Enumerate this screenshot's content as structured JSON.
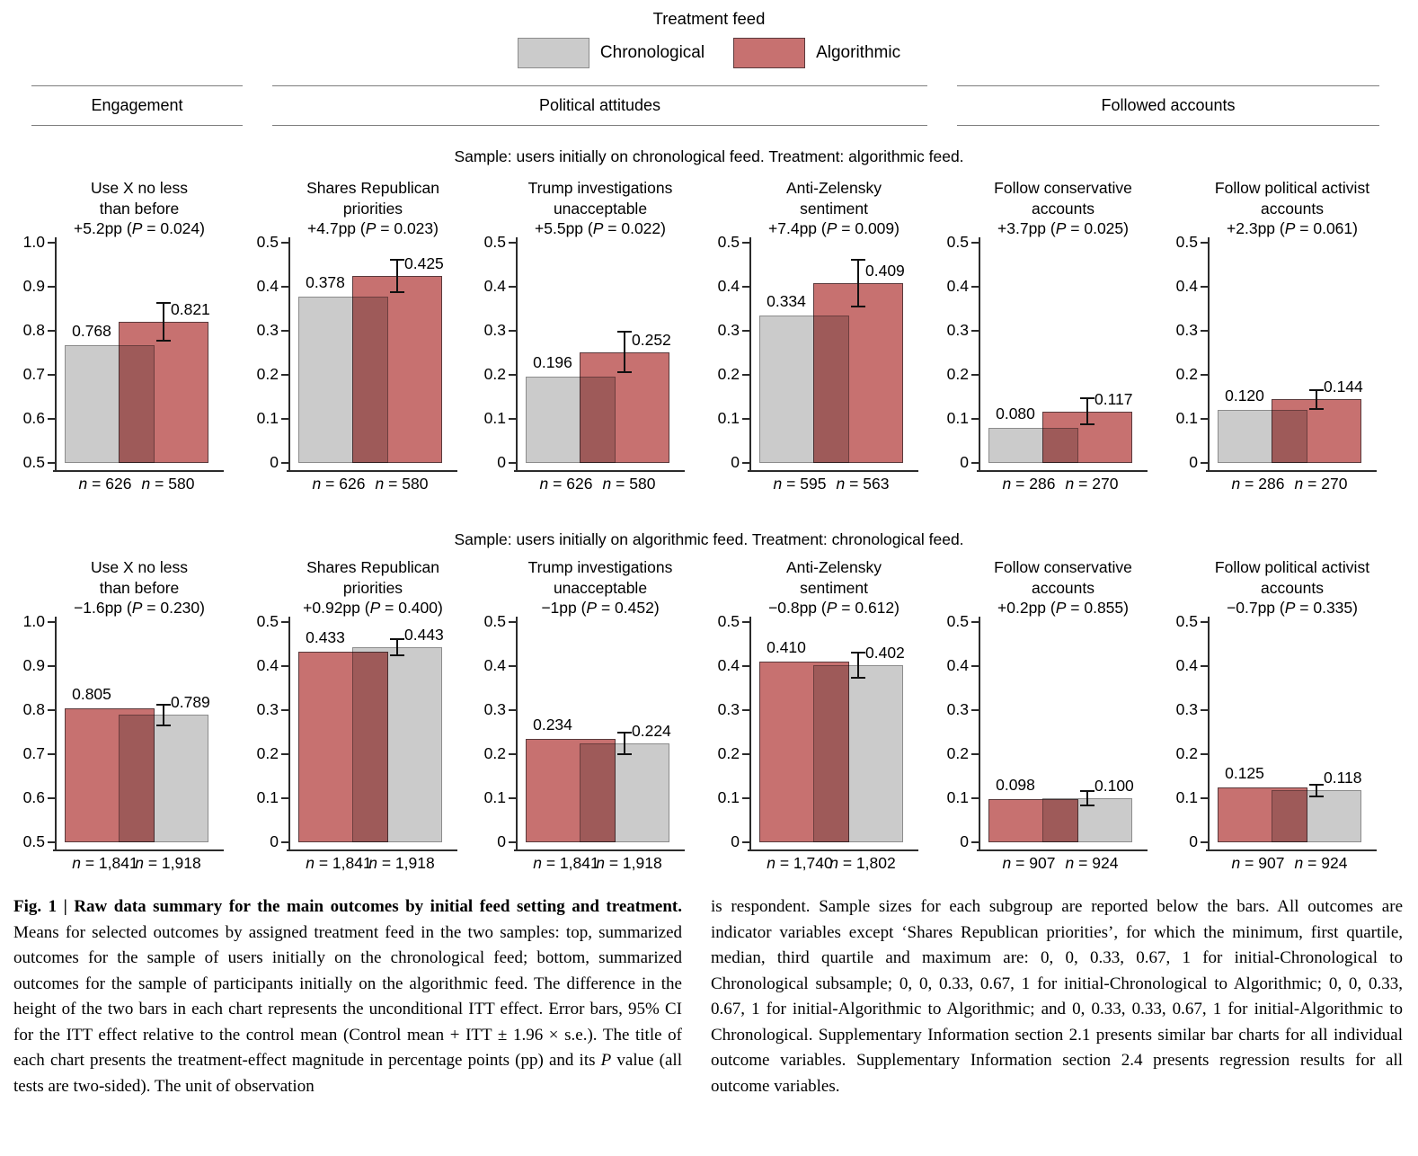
{
  "legend": {
    "title": "Treatment feed",
    "items": [
      {
        "label": "Chronological",
        "color": "#cbcbcb",
        "border": "#8c8c8c"
      },
      {
        "label": "Algorithmic",
        "color": "#c77170",
        "border": "#5a3a3c"
      }
    ]
  },
  "group_headers": [
    {
      "label": "Engagement"
    },
    {
      "label": "Political attitudes"
    },
    {
      "label": "Followed accounts"
    }
  ],
  "chart_data": {
    "type": "bar",
    "grid": false,
    "error_bars": "95% CI on treatment bar",
    "rows": [
      {
        "sample_label": "Sample: users initially on chronological feed. Treatment: algorithmic feed.",
        "charts": [
          {
            "title_lines": [
              "Use X no less",
              "than before"
            ],
            "effect": "+5.2pp",
            "p_value": "0.024",
            "ylim": [
              0.5,
              1.0
            ],
            "bars": [
              {
                "group": "Chronological",
                "value": 0.768,
                "label": "0.768",
                "n_label": "n = 626"
              },
              {
                "group": "Algorithmic",
                "value": 0.821,
                "label": "0.821",
                "n_label": "n = 580",
                "ci": [
                  0.776,
                  0.866
                ]
              }
            ]
          },
          {
            "title_lines": [
              "Shares Republican",
              "priorities"
            ],
            "effect": "+4.7pp",
            "p_value": "0.023",
            "ylim": [
              0,
              0.5
            ],
            "bars": [
              {
                "group": "Chronological",
                "value": 0.378,
                "label": "0.378",
                "n_label": "n = 626"
              },
              {
                "group": "Algorithmic",
                "value": 0.425,
                "label": "0.425",
                "n_label": "n = 580",
                "ci": [
                  0.386,
                  0.464
                ]
              }
            ]
          },
          {
            "title_lines": [
              "Trump investigations",
              "unacceptable"
            ],
            "effect": "+5.5pp",
            "p_value": "0.022",
            "ylim": [
              0,
              0.5
            ],
            "bars": [
              {
                "group": "Chronological",
                "value": 0.196,
                "label": "0.196",
                "n_label": "n = 626"
              },
              {
                "group": "Algorithmic",
                "value": 0.252,
                "label": "0.252",
                "n_label": "n = 580",
                "ci": [
                  0.205,
                  0.299
                ]
              }
            ]
          },
          {
            "title_lines": [
              "Anti-Zelensky",
              "sentiment"
            ],
            "effect": "+7.4pp",
            "p_value": "0.009",
            "ylim": [
              0,
              0.5
            ],
            "bars": [
              {
                "group": "Chronological",
                "value": 0.334,
                "label": "0.334",
                "n_label": "n = 595"
              },
              {
                "group": "Algorithmic",
                "value": 0.409,
                "label": "0.409",
                "n_label": "n = 563",
                "ci": [
                  0.354,
                  0.464
                ]
              }
            ]
          },
          {
            "title_lines": [
              "Follow conservative",
              "accounts"
            ],
            "effect": "+3.7pp",
            "p_value": "0.025",
            "ylim": [
              0,
              0.5
            ],
            "bars": [
              {
                "group": "Chronological",
                "value": 0.08,
                "label": "0.080",
                "n_label": "n = 286"
              },
              {
                "group": "Algorithmic",
                "value": 0.117,
                "label": "0.117",
                "n_label": "n = 270",
                "ci": [
                  0.085,
                  0.149
                ]
              }
            ]
          },
          {
            "title_lines": [
              "Follow political activist",
              "accounts"
            ],
            "effect": "+2.3pp",
            "p_value": "0.061",
            "ylim": [
              0,
              0.5
            ],
            "bars": [
              {
                "group": "Chronological",
                "value": 0.12,
                "label": "0.120",
                "n_label": "n = 286"
              },
              {
                "group": "Algorithmic",
                "value": 0.144,
                "label": "0.144",
                "n_label": "n = 270",
                "ci": [
                  0.121,
                  0.167
                ]
              }
            ]
          }
        ]
      },
      {
        "sample_label": "Sample: users initially on algorithmic feed. Treatment: chronological feed.",
        "charts": [
          {
            "title_lines": [
              "Use X no less",
              "than before"
            ],
            "effect": "−1.6pp",
            "p_value": "0.230",
            "ylim": [
              0.5,
              1.0
            ],
            "bars": [
              {
                "group": "Algorithmic",
                "value": 0.805,
                "label": "0.805",
                "n_label": "n = 1,841"
              },
              {
                "group": "Chronological",
                "value": 0.789,
                "label": "0.789",
                "n_label": "n = 1,918",
                "ci": [
                  0.763,
                  0.815
                ]
              }
            ]
          },
          {
            "title_lines": [
              "Shares Republican",
              "priorities"
            ],
            "effect": "+0.92pp",
            "p_value": "0.400",
            "ylim": [
              0,
              0.5
            ],
            "bars": [
              {
                "group": "Algorithmic",
                "value": 0.433,
                "label": "0.433",
                "n_label": "n = 1,841"
              },
              {
                "group": "Chronological",
                "value": 0.443,
                "label": "0.443",
                "n_label": "n = 1,918",
                "ci": [
                  0.423,
                  0.463
                ]
              }
            ]
          },
          {
            "title_lines": [
              "Trump investigations",
              "unacceptable"
            ],
            "effect": "−1pp",
            "p_value": "0.452",
            "ylim": [
              0,
              0.5
            ],
            "bars": [
              {
                "group": "Algorithmic",
                "value": 0.234,
                "label": "0.234",
                "n_label": "n = 1,841"
              },
              {
                "group": "Chronological",
                "value": 0.224,
                "label": "0.224",
                "n_label": "n = 1,918",
                "ci": [
                  0.197,
                  0.251
                ]
              }
            ]
          },
          {
            "title_lines": [
              "Anti-Zelensky",
              "sentiment"
            ],
            "effect": "−0.8pp",
            "p_value": "0.612",
            "ylim": [
              0,
              0.5
            ],
            "bars": [
              {
                "group": "Algorithmic",
                "value": 0.41,
                "label": "0.410",
                "n_label": "n = 1,740"
              },
              {
                "group": "Chronological",
                "value": 0.402,
                "label": "0.402",
                "n_label": "n = 1,802",
                "ci": [
                  0.371,
                  0.433
                ]
              }
            ]
          },
          {
            "title_lines": [
              "Follow conservative",
              "accounts"
            ],
            "effect": "+0.2pp",
            "p_value": "0.855",
            "ylim": [
              0,
              0.5
            ],
            "bars": [
              {
                "group": "Algorithmic",
                "value": 0.098,
                "label": "0.098",
                "n_label": "n = 907"
              },
              {
                "group": "Chronological",
                "value": 0.1,
                "label": "0.100",
                "n_label": "n = 924",
                "ci": [
                  0.082,
                  0.118
                ]
              }
            ]
          },
          {
            "title_lines": [
              "Follow political activist",
              "accounts"
            ],
            "effect": "−0.7pp",
            "p_value": "0.335",
            "ylim": [
              0,
              0.5
            ],
            "bars": [
              {
                "group": "Algorithmic",
                "value": 0.125,
                "label": "0.125",
                "n_label": "n = 907"
              },
              {
                "group": "Chronological",
                "value": 0.118,
                "label": "0.118",
                "n_label": "n = 924",
                "ci": [
                  0.103,
                  0.133
                ]
              }
            ]
          }
        ]
      }
    ]
  },
  "caption": {
    "left": {
      "bold": "Fig. 1 | Raw data summary for the main outcomes by initial feed setting and treatment.",
      "text1": " Means for selected outcomes by assigned treatment feed in the two samples: top, summarized outcomes for the sample of users initially on the chronological feed; bottom, summarized outcomes for the sample of participants initially on the algorithmic feed. The difference in the height of the two bars in each chart represents the unconditional ITT effect. Error bars, 95% CI for the ITT effect relative to the control mean (Control mean + ITT ± 1.96 × s.e.). The title of each chart presents the treatment-effect magnitude in percentage points (pp) and its ",
      "italic": "P",
      "text2": " value (all tests are two-sided). The unit of observation"
    },
    "right": "is respondent. Sample sizes for each subgroup are reported below the bars. All outcomes are indicator variables except ‘Shares Republican priorities’, for which the minimum, first quartile, median, third quartile and maximum are: 0, 0, 0.33, 0.67, 1 for initial-Chronological to Chronological subsample; 0, 0, 0.33, 0.67, 1 for initial-Chronological to Algorithmic; 0, 0, 0.33, 0.67, 1 for initial-Algorithmic to Algorithmic; and 0, 0.33, 0.33, 0.67, 1 for initial-Algorithmic to Chronological. Supplementary Information section 2.1 presents similar bar charts for all individual outcome variables. Supplementary Information section 2.4 presents regression results for all outcome variables."
  }
}
